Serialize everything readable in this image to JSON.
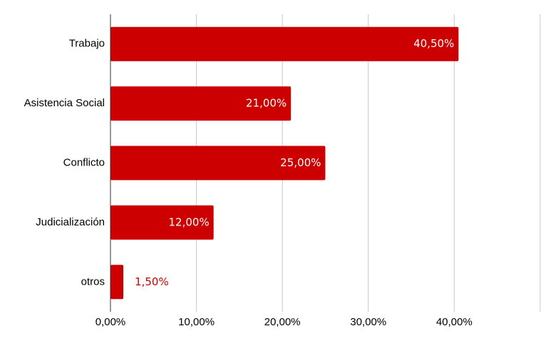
{
  "chart_data": {
    "type": "hbar",
    "categories": [
      "Trabajo",
      "Asistencia Social",
      "Conflicto",
      "Judicialización",
      "otros"
    ],
    "values": [
      40.5,
      21,
      25,
      12,
      1.5
    ],
    "value_labels": [
      "40,50%",
      "21,00%",
      "25,00%",
      "12,00%",
      "1,50%"
    ],
    "color": "#cc0000",
    "xlim": [
      0,
      50
    ],
    "xticks": [
      {
        "value": 0,
        "label": "0,00%"
      },
      {
        "value": 10,
        "label": "10,00%"
      },
      {
        "value": 20,
        "label": "20,00%"
      },
      {
        "value": 30,
        "label": "30,00%"
      },
      {
        "value": 40,
        "label": "40,00%"
      }
    ],
    "grid": true
  }
}
